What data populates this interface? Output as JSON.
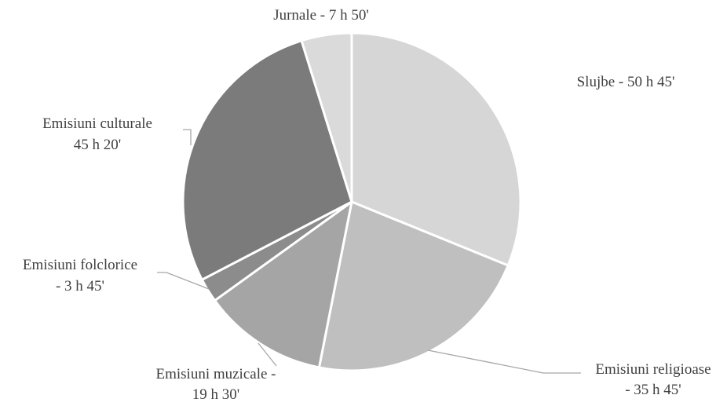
{
  "chart_data": {
    "type": "pie",
    "unit": "minutes",
    "slices": [
      {
        "label_lines": [
          "Slujbe - 50 h 45'"
        ],
        "value": 3045,
        "color": "#d6d6d6"
      },
      {
        "label_lines": [
          "Emisiuni religioase",
          "- 35 h 45'"
        ],
        "value": 2145,
        "color": "#bfbfbf"
      },
      {
        "label_lines": [
          "Emisiuni muzicale -",
          "19 h 30'"
        ],
        "value": 1170,
        "color": "#a5a5a5"
      },
      {
        "label_lines": [
          "Emisiuni folclorice",
          "- 3 h 45'"
        ],
        "value": 225,
        "color": "#8c8c8c"
      },
      {
        "label_lines": [
          "Emisiuni culturale",
          "45 h 20'"
        ],
        "value": 2720,
        "color": "#7b7b7b"
      },
      {
        "label_lines": [
          "Jurnale - 7 h 50'"
        ],
        "value": 470,
        "color": "#dadada"
      }
    ]
  }
}
